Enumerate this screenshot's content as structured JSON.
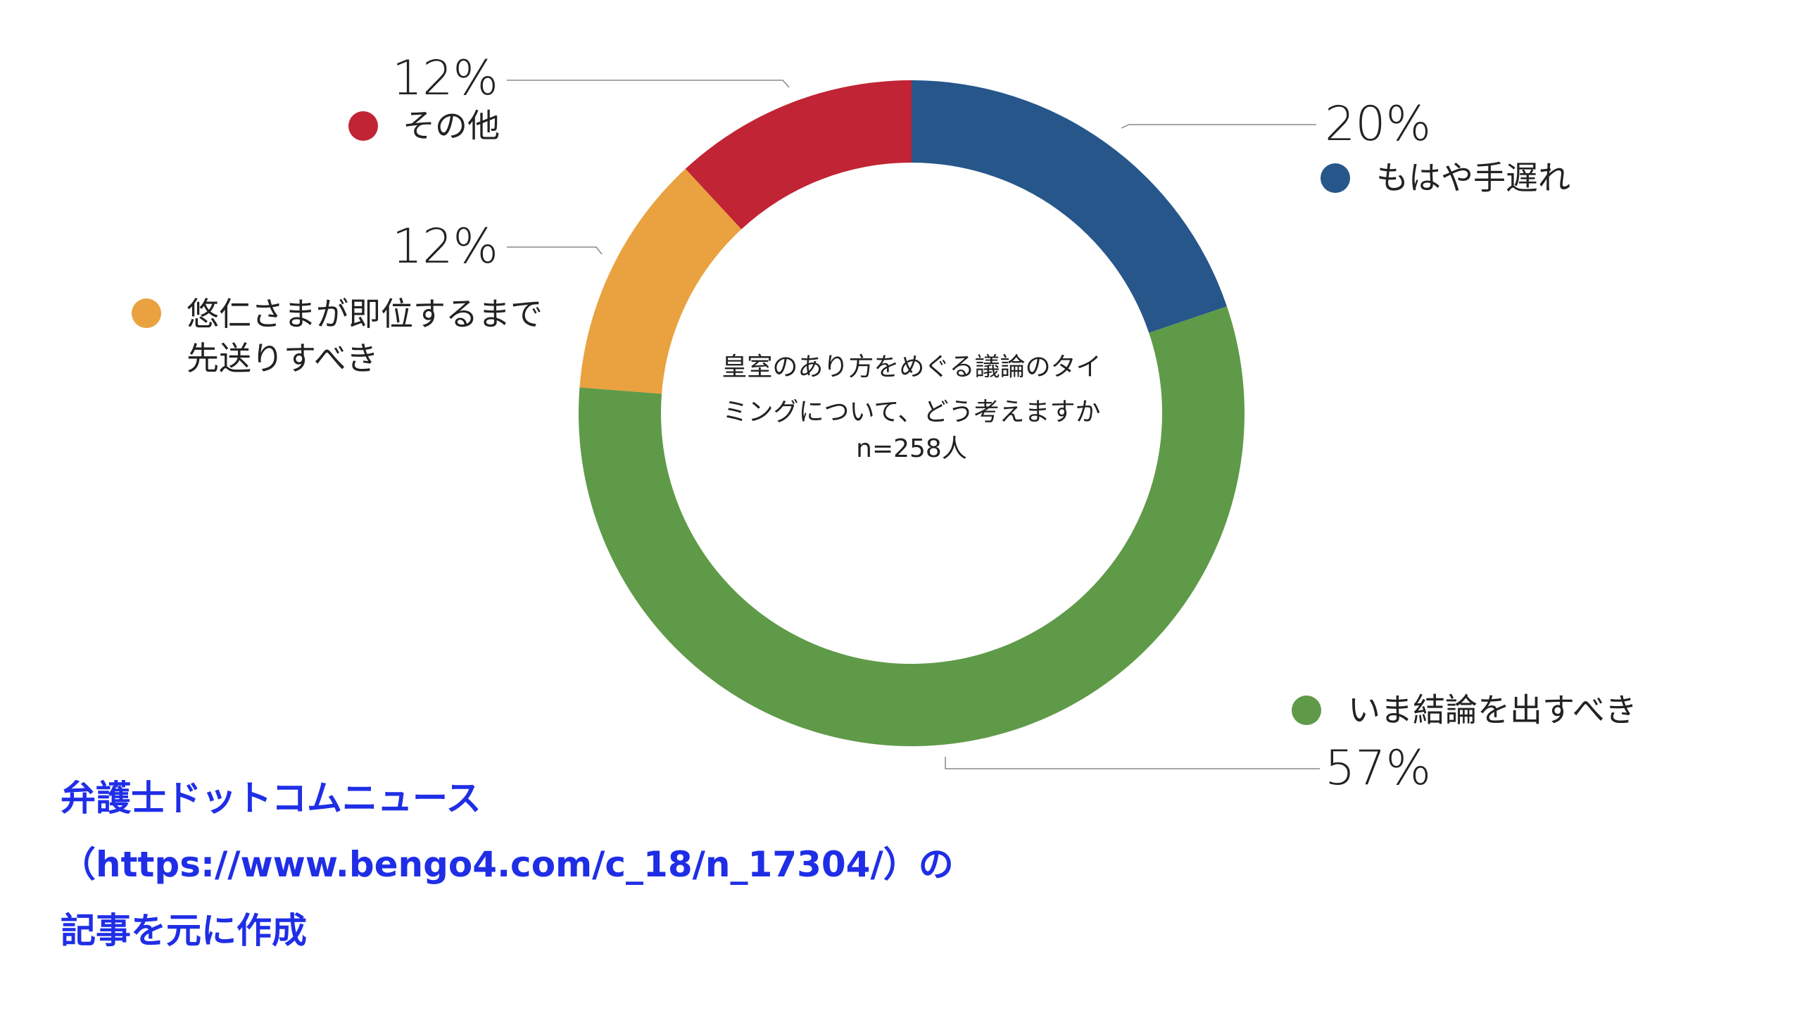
{
  "chart_data": {
    "type": "donut",
    "title": "皇室のあり方をめぐる議論のタイ\nミングについて、どう考えますか",
    "subtitle": "n=258人",
    "categories": [
      "もはや手遅れ",
      "いま結論を出すべき",
      "悠仁さまが即位するまで\n先送りすべき",
      "その他"
    ],
    "series": [
      {
        "values": [
          20,
          57,
          12,
          12
        ],
        "value_labels": [
          "20%",
          "57%",
          "12%",
          "12%"
        ],
        "colors": [
          "#27568a",
          "#5f9a48",
          "#e9a23f",
          "#c12434"
        ]
      }
    ],
    "source": [
      "弁護士ドットコムニュース",
      "（https://www.bengo4.com/c_18/n_17304/）の",
      "記事を元に作成"
    ]
  }
}
